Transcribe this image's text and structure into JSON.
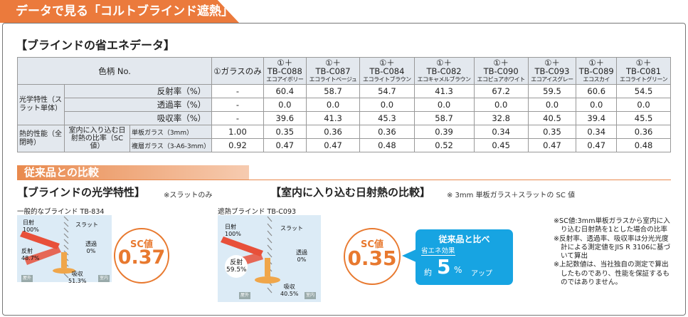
{
  "header": {
    "tab": "データで見る「コルトブラインド遮熱」"
  },
  "data_section": {
    "title": "【ブラインドの省エネデータ】"
  },
  "table": {
    "color_no_label": "色柄 No.",
    "glass_only": "①ガラスのみ",
    "products": [
      {
        "prefix": "①＋",
        "code": "TB-C088",
        "name": "エコアイボリー"
      },
      {
        "prefix": "①＋",
        "code": "TB-C087",
        "name": "エコライトベージュ"
      },
      {
        "prefix": "①＋",
        "code": "TB-C084",
        "name": "エコライトブラウン"
      },
      {
        "prefix": "①＋",
        "code": "TB-C082",
        "name": "エコキャメルブラウン"
      },
      {
        "prefix": "①＋",
        "code": "TB-C090",
        "name": "エコピュアホワイト"
      },
      {
        "prefix": "①＋",
        "code": "TB-C093",
        "name": "エコアイスグレー"
      },
      {
        "prefix": "①＋",
        "code": "TB-C089",
        "name": "エコスカイ"
      },
      {
        "prefix": "①＋",
        "code": "TB-C081",
        "name": "エコライトグリーン"
      }
    ],
    "optical_group": "光学特性（スラット単体）",
    "thermal_group": "熱的性能（全閉時）",
    "thermal_sub": "室内に入り込む日射熱の比率（SC 値）",
    "rows": [
      {
        "label": "反射率（%）",
        "glass": "-",
        "values": [
          "60.4",
          "58.7",
          "54.7",
          "41.3",
          "67.2",
          "59.5",
          "60.6",
          "54.5"
        ]
      },
      {
        "label": "透過率（%）",
        "glass": "-",
        "values": [
          "0.0",
          "0.0",
          "0.0",
          "0.0",
          "0.0",
          "0.0",
          "0.0",
          "0.0"
        ]
      },
      {
        "label": "吸収率（%）",
        "glass": "-",
        "values": [
          "39.6",
          "41.3",
          "45.3",
          "58.7",
          "32.8",
          "40.5",
          "39.4",
          "45.5"
        ]
      },
      {
        "label": "単板ガラス（3mm）",
        "glass": "1.00",
        "values": [
          "0.35",
          "0.36",
          "0.36",
          "0.39",
          "0.34",
          "0.35",
          "0.34",
          "0.36"
        ]
      },
      {
        "label": "複層ガラス（3-A6-3mm）",
        "glass": "0.92",
        "values": [
          "0.47",
          "0.47",
          "0.48",
          "0.52",
          "0.45",
          "0.47",
          "0.47",
          "0.48"
        ]
      }
    ]
  },
  "comparison": {
    "title": "従来品との比較",
    "optical_title": "【ブラインドの光学特性】",
    "optical_note": "※スラットのみ",
    "heat_title": "【室内に入り込む日射熱の比較】",
    "heat_note": "※ 3mm 単板ガラス＋スラットの SC 値"
  },
  "left_fig": {
    "caption": "一般的なブラインド TB-834",
    "sun": "日射",
    "sun_val": "100%",
    "slat": "スラット",
    "trans": "透過",
    "trans_val": "0%",
    "refl": "反射",
    "refl_val": "48.7%",
    "abs": "吸収",
    "abs_val": "51.3%",
    "out": "屋外",
    "in": "室内",
    "sc_label": "SC値",
    "sc_value": "0.37"
  },
  "right_fig": {
    "caption": "遮熱ブラインド TB-C093",
    "sun": "日射",
    "sun_val": "100%",
    "slat": "スラット",
    "trans": "透過",
    "trans_val": "0%",
    "refl": "反射",
    "refl_val": "59.5%",
    "abs": "吸収",
    "abs_val": "40.5%",
    "out": "屋外",
    "in": "室内",
    "sc_label": "SC値",
    "sc_value": "0.35"
  },
  "callout": {
    "line1": "従来品と比べ",
    "tag": "省エネ効果",
    "pre": "約",
    "num": "5",
    "unit": "%",
    "post": "アップ"
  },
  "notes": [
    "※SC値:3mm単板ガラスから室内に入り込む日射熱を1とした場合の比率",
    "※反射率、透過率、吸収率は分光光度計による測定値をJIS R 3106に基づいて算出",
    "※上記数値は、当社独自の測定で算出したものであり、性能を保証するものではありません。"
  ],
  "colors": {
    "orange": "#e8792f",
    "table_gray": "#e3e8ee",
    "blue": "#17a4e2",
    "arrow_red": "#e8503a"
  }
}
